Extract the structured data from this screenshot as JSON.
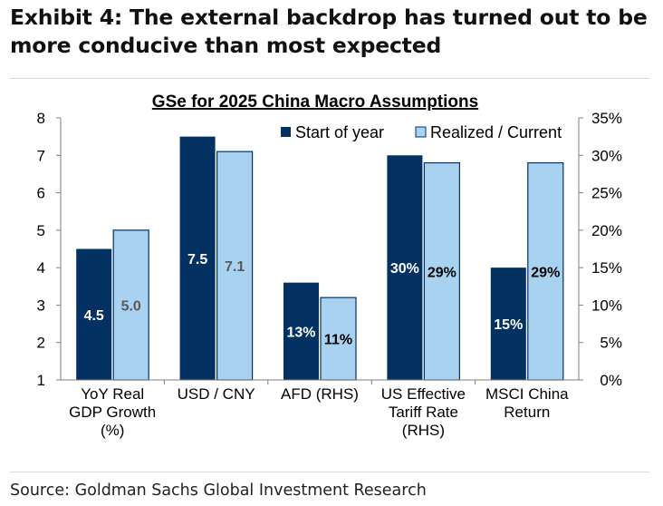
{
  "exhibit": {
    "title_line1": "Exhibit 4: The external backdrop has turned out to be",
    "title_line2": "more conducive than most expected"
  },
  "source": "Source: Goldman Sachs Global Investment Research",
  "colors": {
    "start": "#033162",
    "realized": "#a9d2f0",
    "axis": "#7f7f7f",
    "label_on_light": "#595959"
  },
  "chart_data": {
    "type": "bar",
    "title": "GSe for 2025 China Macro Assumptions",
    "categories": [
      [
        "YoY Real",
        "GDP Growth",
        "(%)"
      ],
      [
        "USD / CNY"
      ],
      [
        "AFD (RHS)"
      ],
      [
        "US Effective",
        "Tariff Rate",
        "(RHS)"
      ],
      [
        "MSCI China",
        "Return"
      ]
    ],
    "axis": [
      "left",
      "left",
      "right",
      "right",
      "right"
    ],
    "left_axis": {
      "ylim": [
        1,
        8
      ],
      "ticks": [
        "1",
        "2",
        "3",
        "4",
        "5",
        "6",
        "7",
        "8"
      ]
    },
    "right_axis": {
      "ylim": [
        0,
        35
      ],
      "ticks": [
        "0%",
        "5%",
        "10%",
        "15%",
        "20%",
        "25%",
        "30%",
        "35%"
      ]
    },
    "series": [
      {
        "name": "Start of year",
        "values": [
          4.5,
          7.5,
          13,
          30,
          15
        ],
        "labels": [
          "4.5",
          "7.5",
          "13%",
          "30%",
          "15%"
        ]
      },
      {
        "name": "Realized / Current",
        "values": [
          5.0,
          7.1,
          11,
          29,
          29
        ],
        "labels": [
          "5.0",
          "7.1",
          "11%",
          "29%",
          "29%"
        ]
      }
    ],
    "legend": "top-right"
  }
}
